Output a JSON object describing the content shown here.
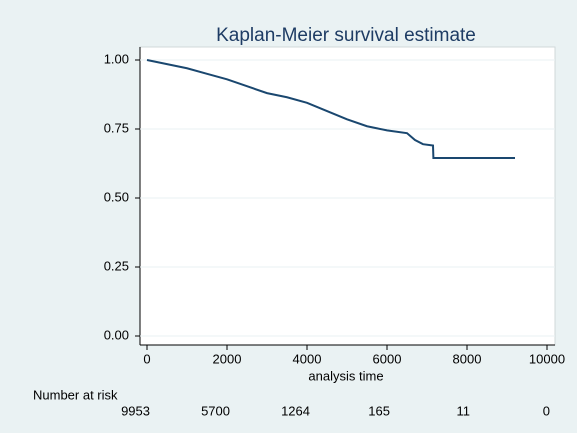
{
  "chart_data": {
    "type": "line",
    "title": "Kaplan-Meier survival estimate",
    "x_label": "analysis time",
    "x": [
      0,
      500,
      1000,
      1500,
      2000,
      2500,
      3000,
      3500,
      4000,
      4500,
      5000,
      5500,
      6000,
      6500,
      6700,
      6900,
      7150,
      7160,
      9200
    ],
    "series": [
      {
        "color": "#1a476f",
        "values": [
          1.0,
          0.985,
          0.97,
          0.95,
          0.93,
          0.905,
          0.88,
          0.865,
          0.845,
          0.815,
          0.785,
          0.76,
          0.745,
          0.735,
          0.71,
          0.695,
          0.69,
          0.645,
          0.645
        ]
      }
    ],
    "xlim": [
      0,
      10000
    ],
    "xticks": [
      0,
      2000,
      4000,
      6000,
      8000,
      10000
    ],
    "ylim": [
      0,
      1
    ],
    "yticks": [
      {
        "value": 0,
        "label": "0.00"
      },
      {
        "value": 0.25,
        "label": "0.25"
      },
      {
        "value": 0.5,
        "label": "0.50"
      },
      {
        "value": 0.75,
        "label": "0.75"
      },
      {
        "value": 1,
        "label": "1.00"
      }
    ],
    "grid": true,
    "risk_table": {
      "label": "Number at risk",
      "values": [
        9953,
        5700,
        1264,
        165,
        11,
        0
      ]
    }
  }
}
